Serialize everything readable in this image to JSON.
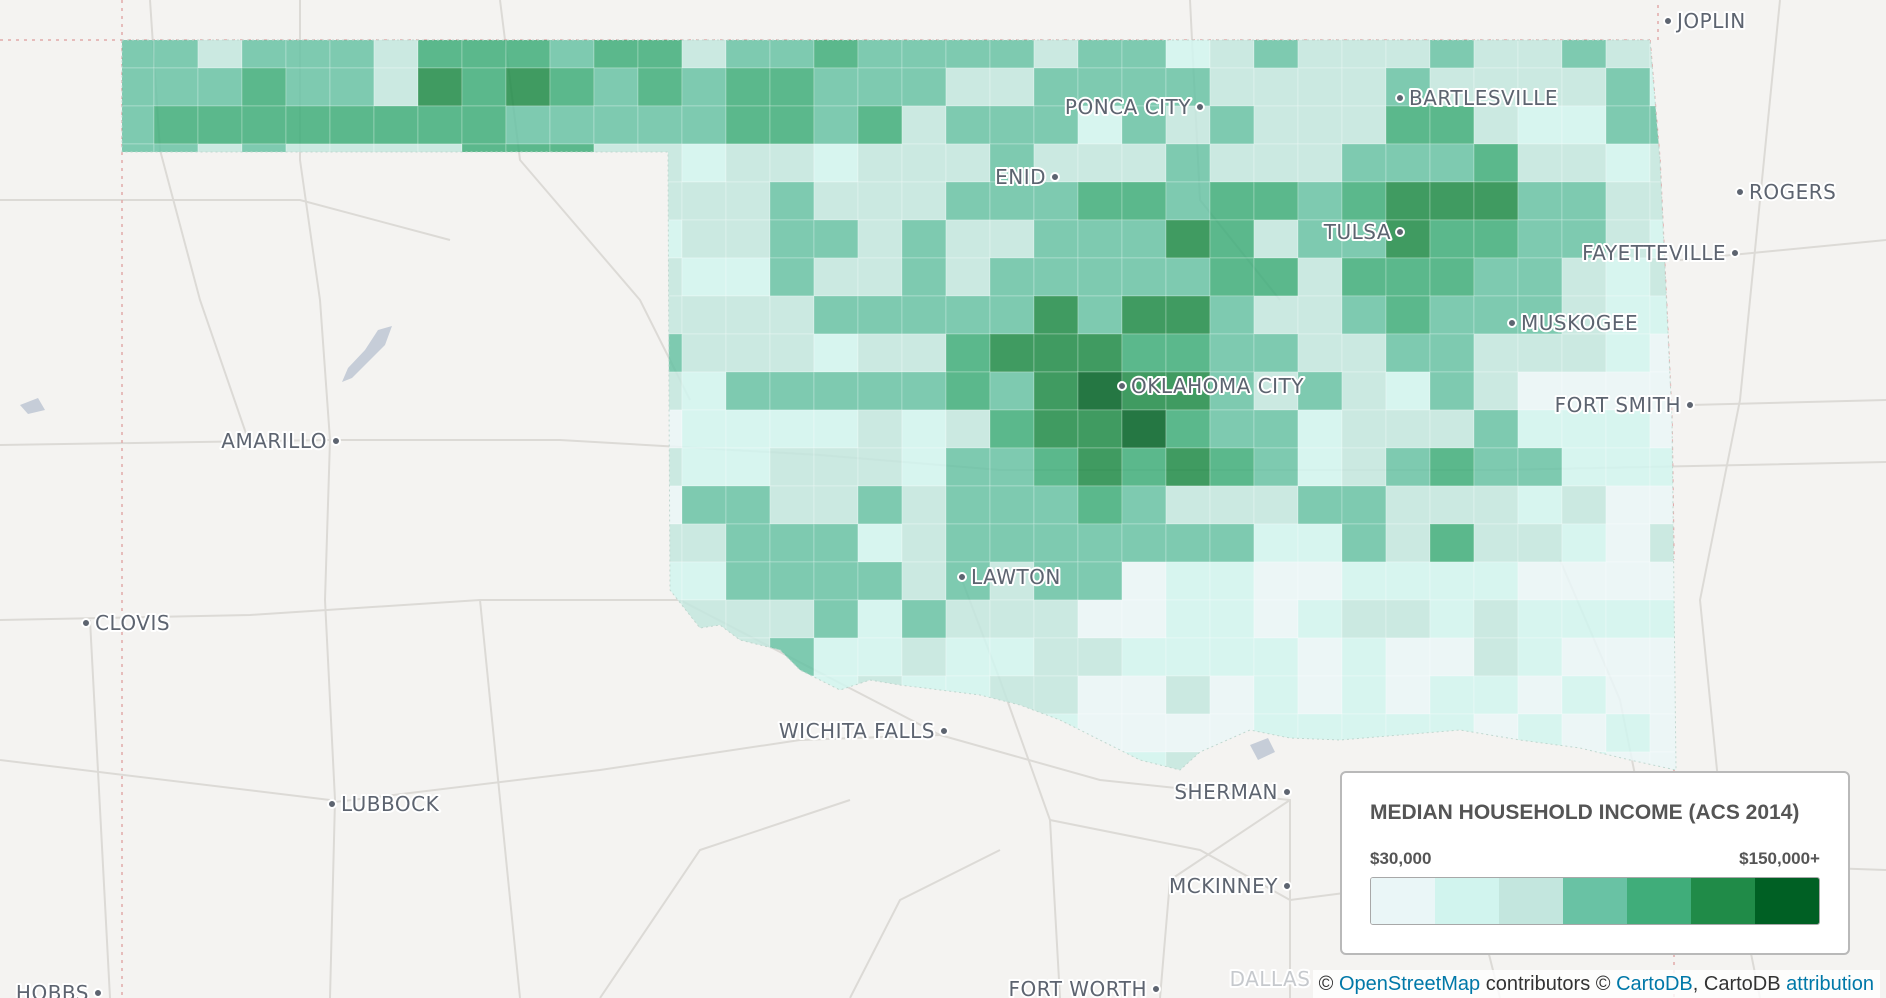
{
  "colors": {
    "background": "#f4f3f1",
    "roads": "#dcdad6",
    "state_border": "#e2a9a9",
    "water": "#c6cdd8",
    "label": "#5d6470",
    "legend_text": "#555555",
    "link": "#0078a8"
  },
  "cities": [
    {
      "name": "JOPLIN",
      "id": "joplin"
    },
    {
      "name": "BARTLESVILLE",
      "id": "bartlesville"
    },
    {
      "name": "PONCA CITY",
      "id": "ponca-city"
    },
    {
      "name": "ENID",
      "id": "enid"
    },
    {
      "name": "ROGERS",
      "id": "rogers"
    },
    {
      "name": "TULSA",
      "id": "tulsa"
    },
    {
      "name": "FAYETTEVILLE",
      "id": "fayetteville"
    },
    {
      "name": "MUSKOGEE",
      "id": "muskogee"
    },
    {
      "name": "OKLAHOMA CITY",
      "id": "oklahoma-city"
    },
    {
      "name": "FORT SMITH",
      "id": "fort-smith"
    },
    {
      "name": "AMARILLO",
      "id": "amarillo"
    },
    {
      "name": "LAWTON",
      "id": "lawton"
    },
    {
      "name": "CLOVIS",
      "id": "clovis"
    },
    {
      "name": "WICHITA FALLS",
      "id": "wichita-falls"
    },
    {
      "name": "SHERMAN",
      "id": "sherman"
    },
    {
      "name": "LUBBOCK",
      "id": "lubbock"
    },
    {
      "name": "MCKINNEY",
      "id": "mckinney"
    },
    {
      "name": "HOBBS",
      "id": "hobbs"
    },
    {
      "name": "FORT WORTH",
      "id": "fort-worth"
    },
    {
      "name": "DALLAS",
      "id": "dallas"
    }
  ],
  "legend": {
    "title": "MEDIAN HOUSEHOLD INCOME (ACS 2014)",
    "min_label": "$30,000",
    "max_label": "$150,000+",
    "swatches": [
      "#eaf6f7",
      "#d1f4ee",
      "#c3e6de",
      "#69c2a4",
      "#40ad7a",
      "#208b48",
      "#006024"
    ]
  },
  "attribution": {
    "prefix": "©",
    "osm_link": "OpenStreetMap",
    "middle": "contributors ©",
    "carto_link": "CartoDB",
    "suffix": ", CartoDB",
    "attribution_link": "attribution"
  }
}
